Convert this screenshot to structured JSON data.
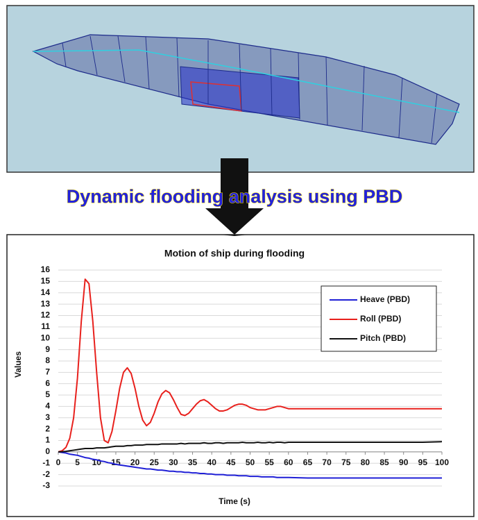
{
  "banner": "Dynamic flooding analysis using PBD",
  "chart_data": {
    "type": "line",
    "title": "Motion of ship during flooding",
    "x_label": "Time (s)",
    "y_label": "Values",
    "x": [
      0,
      1,
      2,
      3,
      4,
      5,
      6,
      7,
      8,
      9,
      10,
      11,
      12,
      13,
      14,
      15,
      16,
      17,
      18,
      19,
      20,
      21,
      22,
      23,
      24,
      25,
      26,
      27,
      28,
      29,
      30,
      31,
      32,
      33,
      34,
      35,
      36,
      37,
      38,
      39,
      40,
      41,
      42,
      43,
      44,
      45,
      46,
      47,
      48,
      49,
      50,
      51,
      52,
      53,
      54,
      55,
      56,
      57,
      58,
      59,
      60,
      65,
      70,
      75,
      80,
      85,
      90,
      95,
      100
    ],
    "series": [
      {
        "name": "Heave (PBD)",
        "color": "#1f1fd6",
        "values": [
          0,
          -0.05,
          -0.1,
          -0.2,
          -0.25,
          -0.3,
          -0.4,
          -0.5,
          -0.55,
          -0.65,
          -0.7,
          -0.8,
          -0.85,
          -0.95,
          -1.0,
          -1.1,
          -1.15,
          -1.2,
          -1.25,
          -1.3,
          -1.35,
          -1.4,
          -1.45,
          -1.5,
          -1.5,
          -1.55,
          -1.6,
          -1.6,
          -1.65,
          -1.7,
          -1.7,
          -1.75,
          -1.75,
          -1.8,
          -1.8,
          -1.85,
          -1.85,
          -1.9,
          -1.9,
          -1.95,
          -1.95,
          -2.0,
          -2.0,
          -2.0,
          -2.05,
          -2.05,
          -2.05,
          -2.1,
          -2.1,
          -2.1,
          -2.15,
          -2.15,
          -2.15,
          -2.2,
          -2.2,
          -2.2,
          -2.2,
          -2.25,
          -2.25,
          -2.25,
          -2.25,
          -2.3,
          -2.3,
          -2.3,
          -2.3,
          -2.3,
          -2.3,
          -2.3,
          -2.3
        ]
      },
      {
        "name": "Roll (PBD)",
        "color": "#e8201c",
        "values": [
          0,
          0.1,
          0.4,
          1.2,
          3.0,
          6.5,
          11.5,
          15.2,
          14.8,
          11.5,
          7.0,
          3.0,
          1.0,
          0.8,
          1.8,
          3.6,
          5.6,
          7.0,
          7.4,
          6.9,
          5.6,
          4.0,
          2.8,
          2.3,
          2.6,
          3.4,
          4.4,
          5.1,
          5.4,
          5.2,
          4.6,
          3.9,
          3.3,
          3.2,
          3.4,
          3.8,
          4.2,
          4.5,
          4.6,
          4.4,
          4.1,
          3.8,
          3.6,
          3.6,
          3.7,
          3.9,
          4.1,
          4.2,
          4.2,
          4.1,
          3.9,
          3.8,
          3.7,
          3.7,
          3.7,
          3.8,
          3.9,
          4.0,
          4.0,
          3.9,
          3.8,
          3.8,
          3.8,
          3.8,
          3.8,
          3.8,
          3.8,
          3.8,
          3.8
        ]
      },
      {
        "name": "Pitch (PBD)",
        "color": "#111111",
        "values": [
          0,
          0.02,
          0.05,
          0.1,
          0.15,
          0.2,
          0.25,
          0.3,
          0.3,
          0.3,
          0.35,
          0.35,
          0.35,
          0.4,
          0.45,
          0.5,
          0.5,
          0.5,
          0.55,
          0.55,
          0.6,
          0.6,
          0.6,
          0.65,
          0.65,
          0.65,
          0.65,
          0.7,
          0.7,
          0.7,
          0.7,
          0.7,
          0.75,
          0.7,
          0.75,
          0.75,
          0.75,
          0.75,
          0.8,
          0.75,
          0.75,
          0.8,
          0.8,
          0.75,
          0.8,
          0.8,
          0.8,
          0.8,
          0.85,
          0.8,
          0.8,
          0.8,
          0.85,
          0.8,
          0.8,
          0.85,
          0.8,
          0.85,
          0.85,
          0.8,
          0.85,
          0.85,
          0.85,
          0.85,
          0.85,
          0.85,
          0.85,
          0.85,
          0.9
        ]
      }
    ],
    "xlim": [
      0,
      100
    ],
    "xticks": [
      0,
      5,
      10,
      15,
      20,
      25,
      30,
      35,
      40,
      45,
      50,
      55,
      60,
      65,
      70,
      75,
      80,
      85,
      90,
      95,
      100
    ],
    "ylim": [
      -3,
      16
    ],
    "yticks": [
      -3,
      -2,
      -1,
      0,
      1,
      2,
      3,
      4,
      5,
      6,
      7,
      8,
      9,
      10,
      11,
      12,
      13,
      14,
      15,
      16
    ],
    "grid": true,
    "legend": "upper right"
  }
}
